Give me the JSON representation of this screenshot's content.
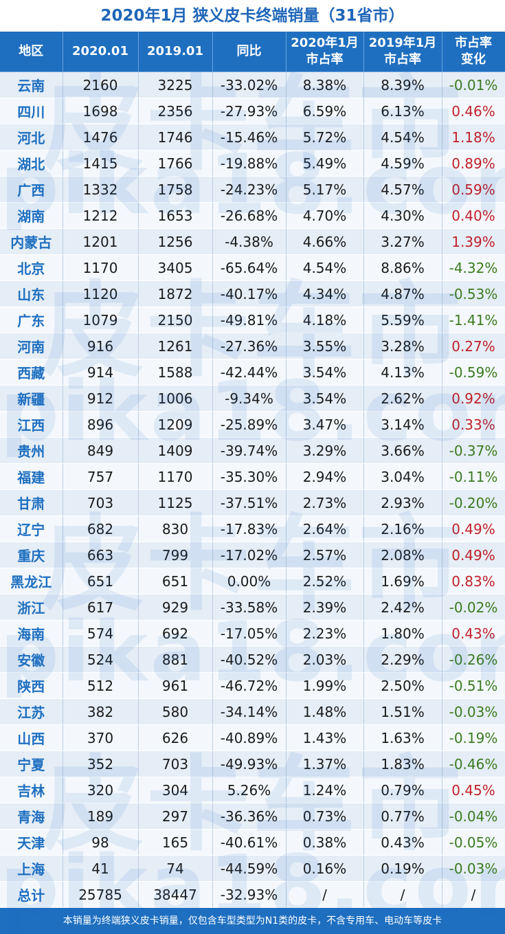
{
  "title": "2020年1月 狭义皮卡终端销量（31省市）",
  "headers": [
    "地区",
    "2020.01",
    "2019.01",
    "同比",
    "2020年1月\n市占率",
    "2019年1月\n市占率",
    "市占率\n变化"
  ],
  "rows": [
    {
      "region": "云南",
      "y2020": "2160",
      "y2019": "3225",
      "yoy": "-33.02%",
      "share2020": "8.38%",
      "share2019": "8.39%",
      "change": "-0.01%"
    },
    {
      "region": "四川",
      "y2020": "1698",
      "y2019": "2356",
      "yoy": "-27.93%",
      "share2020": "6.59%",
      "share2019": "6.13%",
      "change": "0.46%"
    },
    {
      "region": "河北",
      "y2020": "1476",
      "y2019": "1746",
      "yoy": "-15.46%",
      "share2020": "5.72%",
      "share2019": "4.54%",
      "change": "1.18%"
    },
    {
      "region": "湖北",
      "y2020": "1415",
      "y2019": "1766",
      "yoy": "-19.88%",
      "share2020": "5.49%",
      "share2019": "4.59%",
      "change": "0.89%"
    },
    {
      "region": "广西",
      "y2020": "1332",
      "y2019": "1758",
      "yoy": "-24.23%",
      "share2020": "5.17%",
      "share2019": "4.57%",
      "change": "0.59%"
    },
    {
      "region": "湖南",
      "y2020": "1212",
      "y2019": "1653",
      "yoy": "-26.68%",
      "share2020": "4.70%",
      "share2019": "4.30%",
      "change": "0.40%"
    },
    {
      "region": "内蒙古",
      "y2020": "1201",
      "y2019": "1256",
      "yoy": "-4.38%",
      "share2020": "4.66%",
      "share2019": "3.27%",
      "change": "1.39%"
    },
    {
      "region": "北京",
      "y2020": "1170",
      "y2019": "3405",
      "yoy": "-65.64%",
      "share2020": "4.54%",
      "share2019": "8.86%",
      "change": "-4.32%"
    },
    {
      "region": "山东",
      "y2020": "1120",
      "y2019": "1872",
      "yoy": "-40.17%",
      "share2020": "4.34%",
      "share2019": "4.87%",
      "change": "-0.53%"
    },
    {
      "region": "广东",
      "y2020": "1079",
      "y2019": "2150",
      "yoy": "-49.81%",
      "share2020": "4.18%",
      "share2019": "5.59%",
      "change": "-1.41%"
    },
    {
      "region": "河南",
      "y2020": "916",
      "y2019": "1261",
      "yoy": "-27.36%",
      "share2020": "3.55%",
      "share2019": "3.28%",
      "change": "0.27%"
    },
    {
      "region": "西藏",
      "y2020": "914",
      "y2019": "1588",
      "yoy": "-42.44%",
      "share2020": "3.54%",
      "share2019": "4.13%",
      "change": "-0.59%"
    },
    {
      "region": "新疆",
      "y2020": "912",
      "y2019": "1006",
      "yoy": "-9.34%",
      "share2020": "3.54%",
      "share2019": "2.62%",
      "change": "0.92%"
    },
    {
      "region": "江西",
      "y2020": "896",
      "y2019": "1209",
      "yoy": "-25.89%",
      "share2020": "3.47%",
      "share2019": "3.14%",
      "change": "0.33%"
    },
    {
      "region": "贵州",
      "y2020": "849",
      "y2019": "1409",
      "yoy": "-39.74%",
      "share2020": "3.29%",
      "share2019": "3.66%",
      "change": "-0.37%"
    },
    {
      "region": "福建",
      "y2020": "757",
      "y2019": "1170",
      "yoy": "-35.30%",
      "share2020": "2.94%",
      "share2019": "3.04%",
      "change": "-0.11%"
    },
    {
      "region": "甘肃",
      "y2020": "703",
      "y2019": "1125",
      "yoy": "-37.51%",
      "share2020": "2.73%",
      "share2019": "2.93%",
      "change": "-0.20%"
    },
    {
      "region": "辽宁",
      "y2020": "682",
      "y2019": "830",
      "yoy": "-17.83%",
      "share2020": "2.64%",
      "share2019": "2.16%",
      "change": "0.49%"
    },
    {
      "region": "重庆",
      "y2020": "663",
      "y2019": "799",
      "yoy": "-17.02%",
      "share2020": "2.57%",
      "share2019": "2.08%",
      "change": "0.49%"
    },
    {
      "region": "黑龙江",
      "y2020": "651",
      "y2019": "651",
      "yoy": "0.00%",
      "share2020": "2.52%",
      "share2019": "1.69%",
      "change": "0.83%"
    },
    {
      "region": "浙江",
      "y2020": "617",
      "y2019": "929",
      "yoy": "-33.58%",
      "share2020": "2.39%",
      "share2019": "2.42%",
      "change": "-0.02%"
    },
    {
      "region": "海南",
      "y2020": "574",
      "y2019": "692",
      "yoy": "-17.05%",
      "share2020": "2.23%",
      "share2019": "1.80%",
      "change": "0.43%"
    },
    {
      "region": "安徽",
      "y2020": "524",
      "y2019": "881",
      "yoy": "-40.52%",
      "share2020": "2.03%",
      "share2019": "2.29%",
      "change": "-0.26%"
    },
    {
      "region": "陕西",
      "y2020": "512",
      "y2019": "961",
      "yoy": "-46.72%",
      "share2020": "1.99%",
      "share2019": "2.50%",
      "change": "-0.51%"
    },
    {
      "region": "江苏",
      "y2020": "382",
      "y2019": "580",
      "yoy": "-34.14%",
      "share2020": "1.48%",
      "share2019": "1.51%",
      "change": "-0.03%"
    },
    {
      "region": "山西",
      "y2020": "370",
      "y2019": "626",
      "yoy": "-40.89%",
      "share2020": "1.43%",
      "share2019": "1.63%",
      "change": "-0.19%"
    },
    {
      "region": "宁夏",
      "y2020": "352",
      "y2019": "703",
      "yoy": "-49.93%",
      "share2020": "1.37%",
      "share2019": "1.83%",
      "change": "-0.46%"
    },
    {
      "region": "吉林",
      "y2020": "320",
      "y2019": "304",
      "yoy": "5.26%",
      "share2020": "1.24%",
      "share2019": "0.79%",
      "change": "0.45%"
    },
    {
      "region": "青海",
      "y2020": "189",
      "y2019": "297",
      "yoy": "-36.36%",
      "share2020": "0.73%",
      "share2019": "0.77%",
      "change": "-0.04%"
    },
    {
      "region": "天津",
      "y2020": "98",
      "y2019": "165",
      "yoy": "-40.61%",
      "share2020": "0.38%",
      "share2019": "0.43%",
      "change": "-0.05%"
    },
    {
      "region": "上海",
      "y2020": "41",
      "y2019": "74",
      "yoy": "-44.59%",
      "share2020": "0.16%",
      "share2019": "0.19%",
      "change": "-0.03%"
    }
  ],
  "total": {
    "region": "总计",
    "y2020": "25785",
    "y2019": "38447",
    "yoy": "-32.93%",
    "share2020": "/",
    "share2019": "/",
    "change": "/"
  },
  "footnote": "本销量为终端狭义皮卡销量，仅包含车型类型为N1类的皮卡，不含专用车、电动车等皮卡",
  "watermark": [
    "皮卡车市",
    "pika18.com"
  ],
  "colors": {
    "header_bg": "#1e6fc0",
    "title": "#1f66b8",
    "positive_change": "#c0202a",
    "negative_change": "#3b7a1f"
  },
  "chart_data": {
    "type": "table",
    "title": "2020年1月 狭义皮卡终端销量（31省市）",
    "columns": [
      "地区",
      "2020.01",
      "2019.01",
      "同比",
      "2020年1月市占率",
      "2019年1月市占率",
      "市占率变化"
    ],
    "categories": [
      "云南",
      "四川",
      "河北",
      "湖北",
      "广西",
      "湖南",
      "内蒙古",
      "北京",
      "山东",
      "广东",
      "河南",
      "西藏",
      "新疆",
      "江西",
      "贵州",
      "福建",
      "甘肃",
      "辽宁",
      "重庆",
      "黑龙江",
      "浙江",
      "海南",
      "安徽",
      "陕西",
      "江苏",
      "山西",
      "宁夏",
      "吉林",
      "青海",
      "天津",
      "上海"
    ],
    "series": [
      {
        "name": "2020.01",
        "values": [
          2160,
          1698,
          1476,
          1415,
          1332,
          1212,
          1201,
          1170,
          1120,
          1079,
          916,
          914,
          912,
          896,
          849,
          757,
          703,
          682,
          663,
          651,
          617,
          574,
          524,
          512,
          382,
          370,
          352,
          320,
          189,
          98,
          41
        ]
      },
      {
        "name": "2019.01",
        "values": [
          3225,
          2356,
          1746,
          1766,
          1758,
          1653,
          1256,
          3405,
          1872,
          2150,
          1261,
          1588,
          1006,
          1209,
          1409,
          1170,
          1125,
          830,
          799,
          651,
          929,
          692,
          881,
          961,
          580,
          626,
          703,
          304,
          297,
          165,
          74
        ]
      },
      {
        "name": "同比",
        "values": [
          -33.02,
          -27.93,
          -15.46,
          -19.88,
          -24.23,
          -26.68,
          -4.38,
          -65.64,
          -40.17,
          -49.81,
          -27.36,
          -42.44,
          -9.34,
          -25.89,
          -39.74,
          -35.3,
          -37.51,
          -17.83,
          -17.02,
          0.0,
          -33.58,
          -17.05,
          -40.52,
          -46.72,
          -34.14,
          -40.89,
          -49.93,
          5.26,
          -36.36,
          -40.61,
          -44.59
        ]
      },
      {
        "name": "2020年1月市占率",
        "values": [
          8.38,
          6.59,
          5.72,
          5.49,
          5.17,
          4.7,
          4.66,
          4.54,
          4.34,
          4.18,
          3.55,
          3.54,
          3.54,
          3.47,
          3.29,
          2.94,
          2.73,
          2.64,
          2.57,
          2.52,
          2.39,
          2.23,
          2.03,
          1.99,
          1.48,
          1.43,
          1.37,
          1.24,
          0.73,
          0.38,
          0.16
        ]
      },
      {
        "name": "2019年1月市占率",
        "values": [
          8.39,
          6.13,
          4.54,
          4.59,
          4.57,
          4.3,
          3.27,
          8.86,
          4.87,
          5.59,
          3.28,
          4.13,
          2.62,
          3.14,
          3.66,
          3.04,
          2.93,
          2.16,
          2.08,
          1.69,
          2.42,
          1.8,
          2.29,
          2.5,
          1.51,
          1.63,
          1.83,
          0.79,
          0.77,
          0.43,
          0.19
        ]
      },
      {
        "name": "市占率变化",
        "values": [
          -0.01,
          0.46,
          1.18,
          0.89,
          0.59,
          0.4,
          1.39,
          -4.32,
          -0.53,
          -1.41,
          0.27,
          -0.59,
          0.92,
          0.33,
          -0.37,
          -0.11,
          -0.2,
          0.49,
          0.49,
          0.83,
          -0.02,
          0.43,
          -0.26,
          -0.51,
          -0.03,
          -0.19,
          -0.46,
          0.45,
          -0.04,
          -0.05,
          -0.03
        ]
      }
    ],
    "total": {
      "2020.01": 25785,
      "2019.01": 38447,
      "同比": -32.93
    }
  }
}
